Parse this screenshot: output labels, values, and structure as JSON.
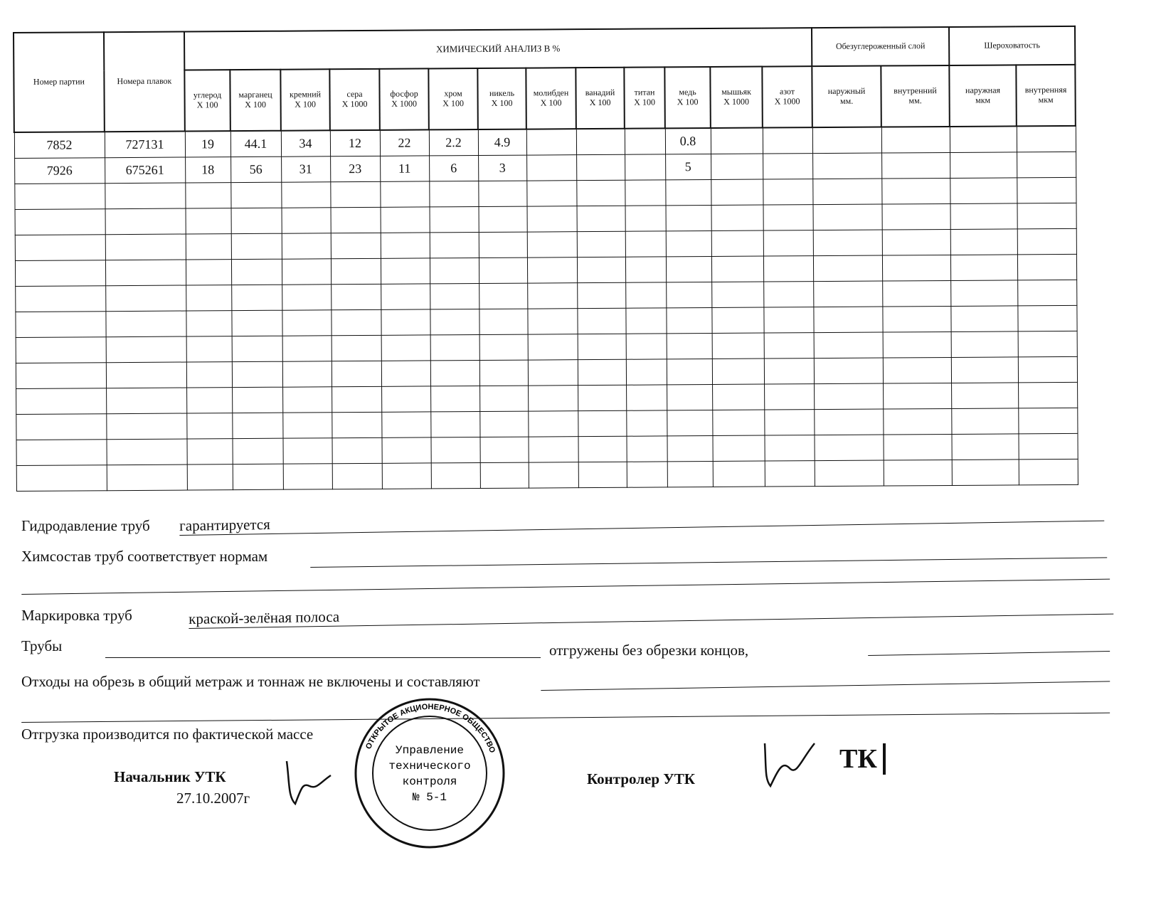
{
  "table": {
    "col_party": "Номер партии",
    "col_heats": "Номера плавок",
    "chem_title": "ХИМИЧЕСКИЙ АНАЛИЗ В  %",
    "decarb_title": "Обезуглероженный слой",
    "rough_title": "Шероховатость",
    "chem_cols": [
      {
        "name": "углерод",
        "mult": "X 100"
      },
      {
        "name": "марганец",
        "mult": "X 100"
      },
      {
        "name": "кремний",
        "mult": "X 100"
      },
      {
        "name": "сера",
        "mult": "X 1000"
      },
      {
        "name": "фосфор",
        "mult": "X 1000"
      },
      {
        "name": "хром",
        "mult": "X 100"
      },
      {
        "name": "никель",
        "mult": "X 100"
      },
      {
        "name": "молибден",
        "mult": "X 100"
      },
      {
        "name": "ванадий",
        "mult": "X 100"
      },
      {
        "name": "титан",
        "mult": "X 100"
      },
      {
        "name": "медь",
        "mult": "X 100"
      },
      {
        "name": "мышьяк",
        "mult": "X 1000"
      },
      {
        "name": "азот",
        "mult": "X 1000"
      }
    ],
    "decarb_cols": [
      {
        "name": "наружный",
        "unit": "мм."
      },
      {
        "name": "внутренний",
        "unit": "мм."
      }
    ],
    "rough_cols": [
      {
        "name": "наружная",
        "unit": "мкм"
      },
      {
        "name": "внутренняя",
        "unit": "мкм"
      }
    ],
    "rows": [
      [
        "7852",
        "727131",
        "19",
        "44.1",
        "34",
        "12",
        "22",
        "2.2",
        "4.9",
        "",
        "",
        "",
        "0.8",
        "",
        "",
        "",
        "",
        "",
        ""
      ],
      [
        "7926",
        "675261",
        "18",
        "56",
        "31",
        "23",
        "11",
        "6",
        "3",
        "",
        "",
        "",
        "5",
        "",
        "",
        "",
        "",
        "",
        ""
      ]
    ]
  },
  "fields": {
    "hydro_label": "Гидродавление труб",
    "hydro_value": "гарантируется",
    "chem_label": "Химсостав труб соответствует нормам",
    "marking_label": "Маркировка труб",
    "marking_value": "краской-зелёная полоса",
    "pipes_label": "Трубы",
    "pipes_suffix": "отгружены без обрезки концов,",
    "trim_label": "Отходы на обрезь в общий метраж и тоннаж не включены и составляют",
    "shipping_label": "Отгрузка производится по фактической массе"
  },
  "signatures": {
    "chief_label": "Начальник  УТК",
    "chief_date": "27.10.2007г",
    "controller_label": "Контролер УТК",
    "controller_stamp": "ТК"
  },
  "stamp": {
    "ring_text": "ОТКРЫТОЕ АКЦИОНЕРНОЕ ОБЩЕСТВО",
    "line1": "Управление",
    "line2": "технического",
    "line3": "контроля",
    "line4": "№ 5-1"
  }
}
